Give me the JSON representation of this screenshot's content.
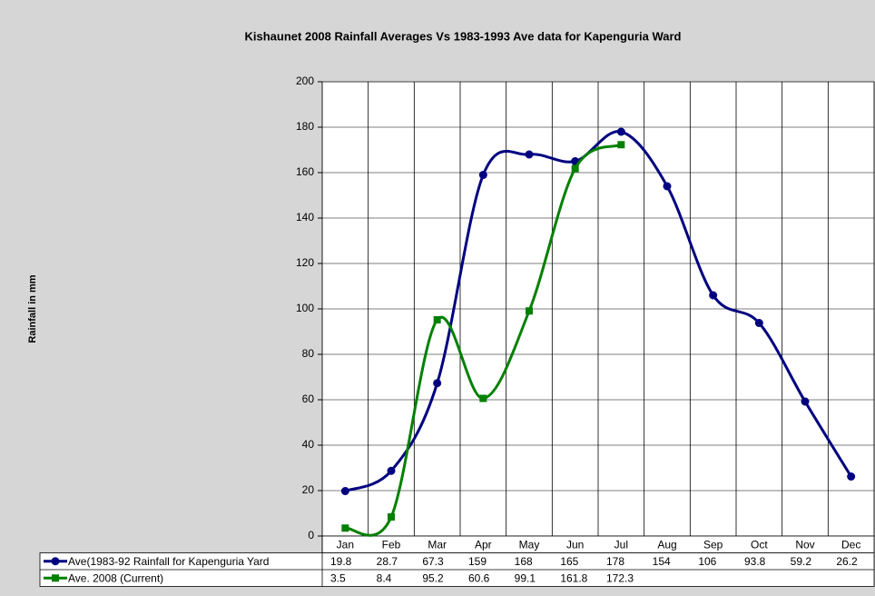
{
  "chart_data": {
    "type": "line",
    "title": "Kishaunet 2008 Rainfall Averages Vs 1983-1993 Ave data for Kapenguria Ward",
    "y_label": "Rainfall in mm",
    "categories": [
      "Jan",
      "Feb",
      "Mar",
      "Apr",
      "May",
      "Jun",
      "Jul",
      "Aug",
      "Sep",
      "Oct",
      "Nov",
      "Dec"
    ],
    "series": [
      {
        "name": "Ave(1983-92 Rainfall for Kapenguria Yard",
        "color": "#000080",
        "marker": "circle",
        "values": [
          19.8,
          28.7,
          67.3,
          159,
          168,
          165,
          178,
          154,
          106,
          93.8,
          59.2,
          26.2
        ]
      },
      {
        "name": "Ave. 2008 (Current)",
        "color": "#008000",
        "marker": "square",
        "values": [
          3.5,
          8.4,
          95.2,
          60.6,
          99.1,
          161.8,
          172.3,
          null,
          null,
          null,
          null,
          null
        ]
      }
    ],
    "ylim": [
      0,
      200
    ],
    "yticks": [
      0,
      20,
      40,
      60,
      80,
      100,
      120,
      140,
      160,
      180,
      200
    ],
    "grid": true,
    "smooth": true
  }
}
